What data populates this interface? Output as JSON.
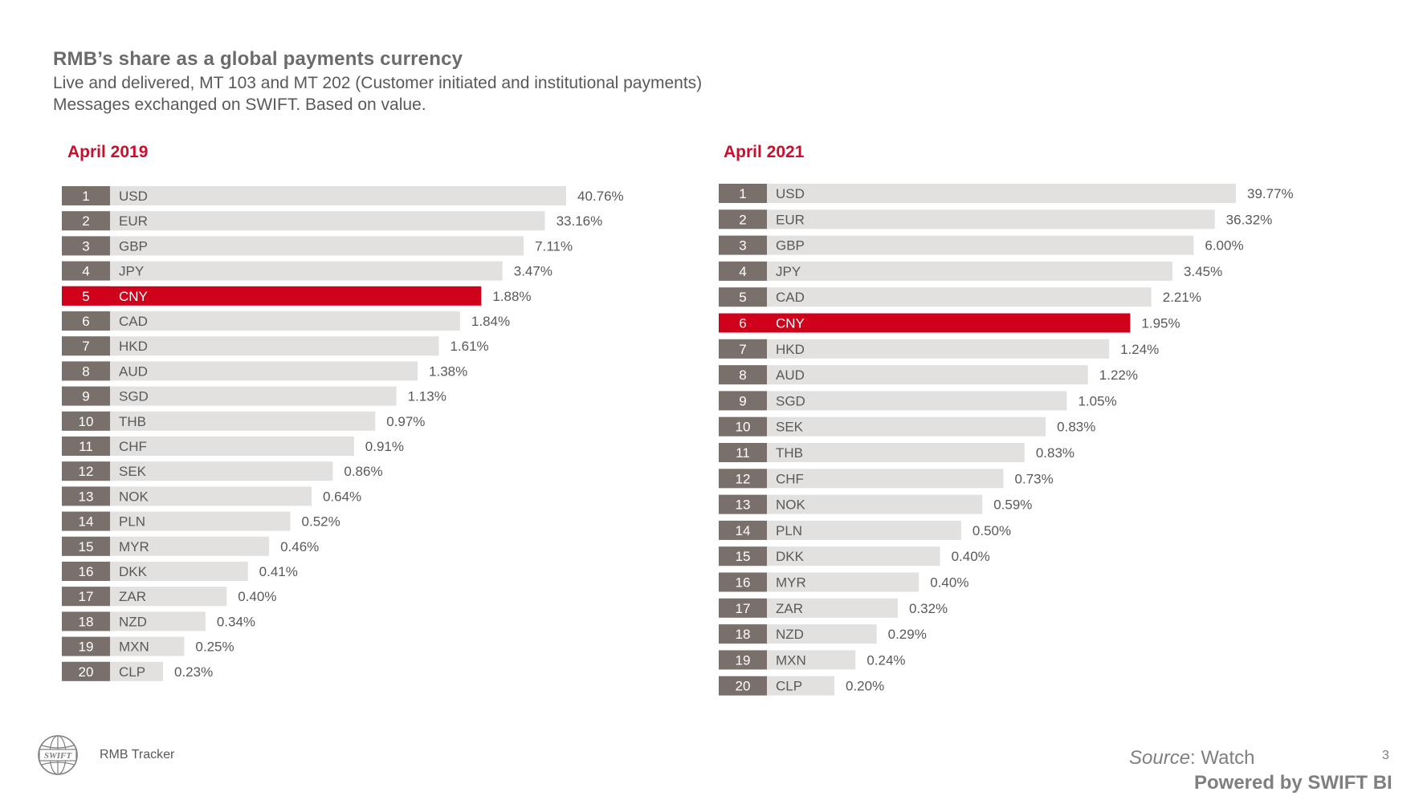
{
  "header": {
    "title": "RMB’s share as a global payments currency",
    "subtitle_line1": "Live and delivered, MT 103 and MT 202 (Customer initiated and institutional payments)",
    "subtitle_line2": "Messages exchanged on SWIFT. Based on value."
  },
  "colors": {
    "rank_box": "#7a706b",
    "bar_bg": "#e3e1df",
    "highlight": "#d0021b",
    "highlight_title": "#c8102e"
  },
  "chart_data": [
    {
      "type": "bar",
      "orientation": "horizontal",
      "title": "April 2019",
      "highlight": "CNY",
      "ranks": [
        "1",
        "2",
        "3",
        "4",
        "5",
        "6",
        "7",
        "8",
        "9",
        "10",
        "11",
        "12",
        "13",
        "14",
        "15",
        "16",
        "17",
        "18",
        "19",
        "20"
      ],
      "categories": [
        "USD",
        "EUR",
        "GBP",
        "JPY",
        "CNY",
        "CAD",
        "HKD",
        "AUD",
        "SGD",
        "THB",
        "CHF",
        "SEK",
        "NOK",
        "PLN",
        "MYR",
        "DKK",
        "ZAR",
        "NZD",
        "MXN",
        "CLP"
      ],
      "values": [
        40.76,
        33.16,
        7.11,
        3.47,
        1.88,
        1.84,
        1.61,
        1.38,
        1.13,
        0.97,
        0.91,
        0.86,
        0.64,
        0.52,
        0.46,
        0.41,
        0.4,
        0.34,
        0.25,
        0.23
      ],
      "value_labels": [
        "40.76%",
        "33.16%",
        "7.11%",
        "3.47%",
        "1.88%",
        "1.84%",
        "1.61%",
        "1.38%",
        "1.13%",
        "0.97%",
        "0.91%",
        "0.86%",
        "0.64%",
        "0.52%",
        "0.46%",
        "0.41%",
        "0.40%",
        "0.34%",
        "0.25%",
        "0.23%"
      ]
    },
    {
      "type": "bar",
      "orientation": "horizontal",
      "title": "April 2021",
      "highlight": "CNY",
      "ranks": [
        "1",
        "2",
        "3",
        "4",
        "5",
        "6",
        "7",
        "8",
        "9",
        "10",
        "11",
        "12",
        "13",
        "14",
        "15",
        "16",
        "17",
        "18",
        "19",
        "20"
      ],
      "categories": [
        "USD",
        "EUR",
        "GBP",
        "JPY",
        "CAD",
        "CNY",
        "HKD",
        "AUD",
        "SGD",
        "SEK",
        "THB",
        "CHF",
        "NOK",
        "PLN",
        "DKK",
        "MYR",
        "ZAR",
        "NZD",
        "MXN",
        "CLP"
      ],
      "values": [
        39.77,
        36.32,
        6.0,
        3.45,
        2.21,
        1.95,
        1.24,
        1.22,
        1.05,
        0.83,
        0.83,
        0.73,
        0.59,
        0.5,
        0.4,
        0.4,
        0.32,
        0.29,
        0.24,
        0.2
      ],
      "value_labels": [
        "39.77%",
        "36.32%",
        "6.00%",
        "3.45%",
        "2.21%",
        "1.95%",
        "1.24%",
        "1.22%",
        "1.05%",
        "0.83%",
        "0.83%",
        "0.73%",
        "0.59%",
        "0.50%",
        "0.40%",
        "0.40%",
        "0.32%",
        "0.29%",
        "0.24%",
        "0.20%"
      ]
    }
  ],
  "footer": {
    "logo_text": "SWIFT",
    "label": "RMB Tracker",
    "source_prefix": "Source",
    "source_suffix": ": Watch",
    "page_number": "3",
    "powered_by": "Powered by SWIFT BI"
  }
}
